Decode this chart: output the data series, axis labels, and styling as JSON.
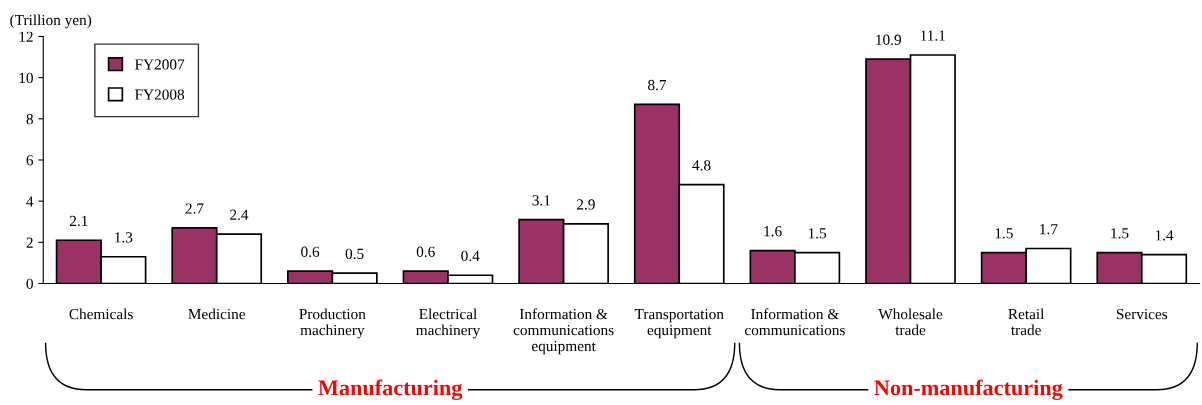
{
  "chart_data": {
    "type": "bar",
    "ylabel": "(Trillion yen)",
    "categories": [
      "Chemicals",
      "Medicine",
      "Production\nmachinery",
      "Electrical\nmachinery",
      "Information &\ncommunications\nequipment",
      "Transportation\nequipment",
      "Information &\ncommunications",
      "Wholesale\ntrade",
      "Retail\ntrade",
      "Services"
    ],
    "series": [
      {
        "name": "FY2007",
        "color": "#993366",
        "values": [
          2.1,
          2.7,
          0.6,
          0.6,
          3.1,
          8.7,
          1.6,
          10.9,
          1.5,
          1.5
        ]
      },
      {
        "name": "FY2008",
        "color": "#ffffff",
        "values": [
          1.3,
          2.4,
          0.5,
          0.4,
          2.9,
          4.8,
          1.5,
          11.1,
          1.7,
          1.4
        ]
      }
    ],
    "ylim": [
      0,
      12
    ],
    "yticks": [
      0,
      2,
      4,
      6,
      8,
      10,
      12
    ],
    "data_labels": true,
    "legend": "top left",
    "grid": false,
    "annotations": [
      "Manufacturing",
      "Non-manufacturing"
    ]
  }
}
